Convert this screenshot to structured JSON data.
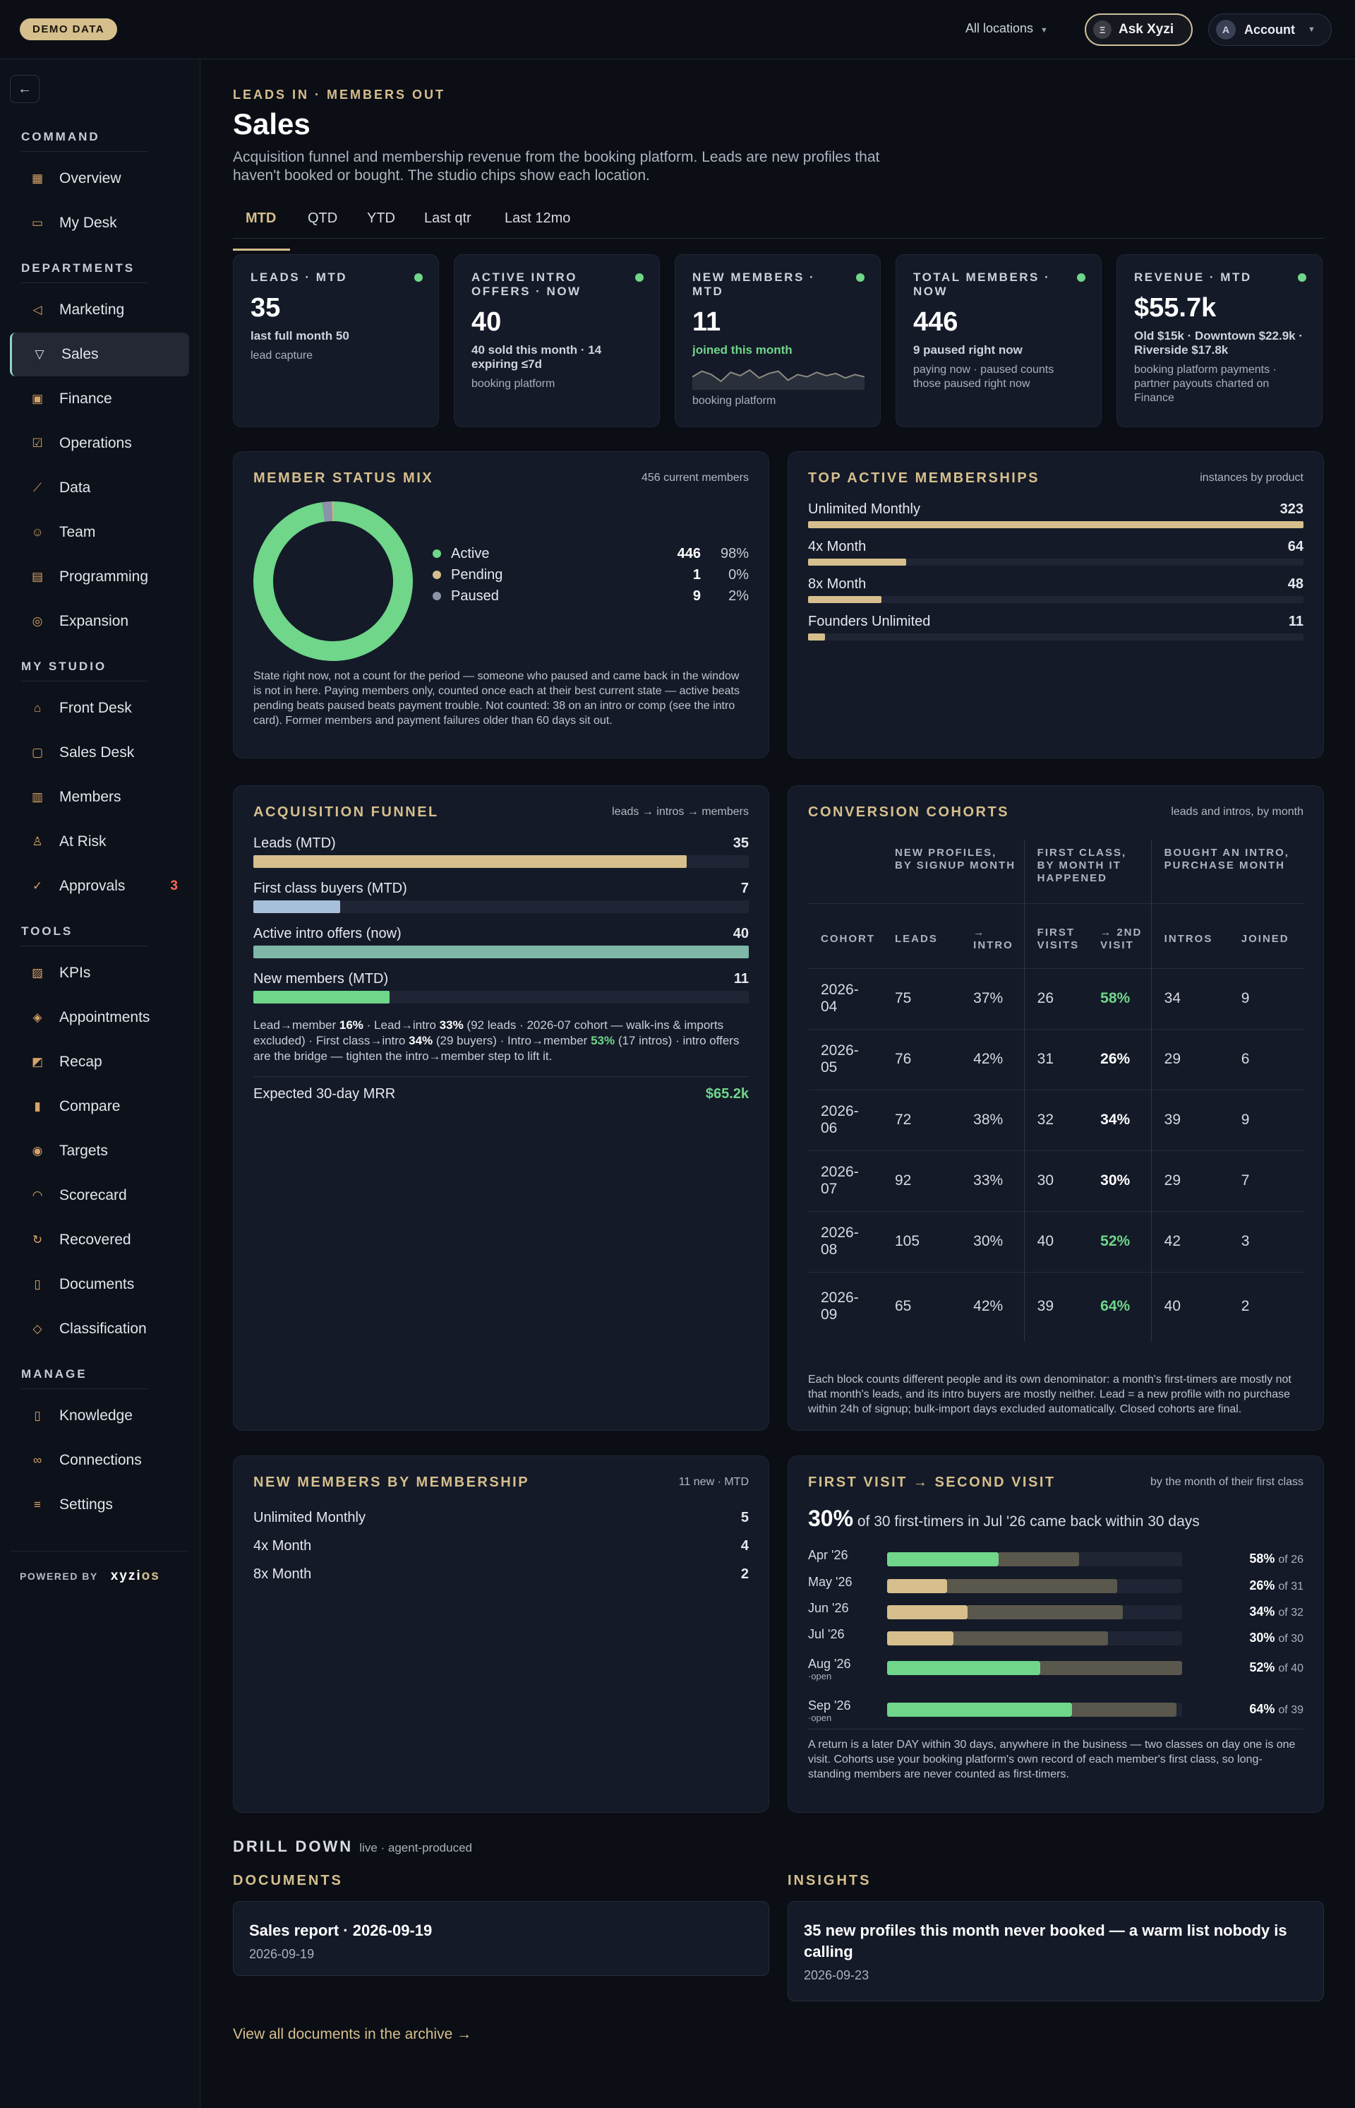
{
  "topbar": {
    "demo": "DEMO DATA",
    "locations": "All locations",
    "ask": "Ask Xyzi",
    "ask_avatar": "Ξ",
    "account": "Account",
    "account_avatar": "A"
  },
  "sidebar": {
    "sections": [
      {
        "label": "COMMAND",
        "items": [
          {
            "label": "Overview",
            "icon": "grid-icon"
          },
          {
            "label": "My Desk",
            "icon": "inbox-icon"
          }
        ]
      },
      {
        "label": "DEPARTMENTS",
        "items": [
          {
            "label": "Marketing",
            "icon": "megaphone-icon"
          },
          {
            "label": "Sales",
            "icon": "filter-icon",
            "active": true
          },
          {
            "label": "Finance",
            "icon": "cash-icon"
          },
          {
            "label": "Operations",
            "icon": "clipboard-icon"
          },
          {
            "label": "Data",
            "icon": "chart-line-icon"
          },
          {
            "label": "Team",
            "icon": "users-icon"
          },
          {
            "label": "Programming",
            "icon": "calendar-icon"
          },
          {
            "label": "Expansion",
            "icon": "compass-icon"
          }
        ]
      },
      {
        "label": "MY STUDIO",
        "items": [
          {
            "label": "Front Desk",
            "icon": "bell-icon"
          },
          {
            "label": "Sales Desk",
            "icon": "chat-icon"
          },
          {
            "label": "Members",
            "icon": "id-card-icon"
          },
          {
            "label": "At Risk",
            "icon": "user-alert-icon"
          },
          {
            "label": "Approvals",
            "icon": "check-circle-icon",
            "badge": "3"
          }
        ]
      },
      {
        "label": "TOOLS",
        "items": [
          {
            "label": "KPIs",
            "icon": "kpi-icon"
          },
          {
            "label": "Appointments",
            "icon": "layers-icon"
          },
          {
            "label": "Recap",
            "icon": "recap-icon"
          },
          {
            "label": "Compare",
            "icon": "bar-chart-icon"
          },
          {
            "label": "Targets",
            "icon": "target-icon"
          },
          {
            "label": "Scorecard",
            "icon": "gauge-icon"
          },
          {
            "label": "Recovered",
            "icon": "recovered-icon"
          },
          {
            "label": "Documents",
            "icon": "document-icon"
          },
          {
            "label": "Classification",
            "icon": "tag-icon"
          }
        ]
      },
      {
        "label": "MANAGE",
        "items": [
          {
            "label": "Knowledge",
            "icon": "book-icon"
          },
          {
            "label": "Connections",
            "icon": "link-icon"
          },
          {
            "label": "Settings",
            "icon": "sliders-icon"
          }
        ]
      }
    ],
    "powered_by": "POWERED BY",
    "brand_a": "xyzi",
    "brand_b": "os"
  },
  "header": {
    "eyebrow": "LEADS IN · MEMBERS OUT",
    "title": "Sales",
    "description": "Acquisition funnel and membership revenue from the booking platform. Leads are new profiles that haven't booked or bought. The studio chips show each location."
  },
  "tabs": [
    "MTD",
    "QTD",
    "YTD",
    "Last qtr",
    "Last 12mo"
  ],
  "kpis": [
    {
      "label": "LEADS · MTD",
      "value": "35",
      "sub": "last full month 50",
      "note": "lead capture"
    },
    {
      "label": "ACTIVE INTRO OFFERS · NOW",
      "value": "40",
      "sub": "40 sold this month · 14 expiring ≤7d",
      "note": "booking platform"
    },
    {
      "label": "NEW MEMBERS · MTD",
      "value": "11",
      "sub": "joined this month",
      "note": "booking platform"
    },
    {
      "label": "TOTAL MEMBERS · NOW",
      "value": "446",
      "sub": "9 paused right now",
      "note": "paying now · paused counts those paused right now"
    },
    {
      "label": "REVENUE · MTD",
      "value": "$55.7k",
      "sub": "Old $15k · Downtown $22.9k · Riverside $17.8k",
      "note": "booking platform payments · partner payouts charted on Finance"
    }
  ],
  "sparkline": [
    0.55,
    0.3,
    0.45,
    0.75,
    0.35,
    0.5,
    0.25,
    0.6,
    0.4,
    0.3,
    0.7,
    0.45,
    0.55,
    0.35,
    0.5,
    0.4,
    0.6,
    0.45,
    0.55
  ],
  "status_mix": {
    "title": "MEMBER STATUS MIX",
    "right": "456 current members",
    "items": [
      {
        "label": "Active",
        "count": "446",
        "pct": "98%",
        "value": 446,
        "color": "#6fd68a"
      },
      {
        "label": "Pending",
        "count": "1",
        "pct": "0%",
        "value": 1,
        "color": "#d6bf8d"
      },
      {
        "label": "Paused",
        "count": "9",
        "pct": "2%",
        "value": 9,
        "color": "#8a93a8"
      }
    ],
    "note": "State right now, not a count for the period — someone who paused and came back in the window is not in here. Paying members only, counted once each at their best current state — active beats pending beats paused beats payment trouble. Not counted: 38 on an intro or comp (see the intro card). Former members and payment failures older than 60 days sit out."
  },
  "top_memberships": {
    "title": "TOP ACTIVE MEMBERSHIPS",
    "right": "instances by product",
    "items": [
      {
        "label": "Unlimited Monthly",
        "value": 323
      },
      {
        "label": "4x Month",
        "value": 64
      },
      {
        "label": "8x Month",
        "value": 48
      },
      {
        "label": "Founders Unlimited",
        "value": 11
      }
    ]
  },
  "funnel": {
    "title": "ACQUISITION FUNNEL",
    "right": "leads → intros → members",
    "items": [
      {
        "label": "Leads (MTD)",
        "value": 35,
        "color": "#d6bf8d"
      },
      {
        "label": "First class buyers (MTD)",
        "value": 7,
        "color": "#a6c0dc"
      },
      {
        "label": "Active intro offers (now)",
        "value": 40,
        "color": "#7fb6a8"
      },
      {
        "label": "New members (MTD)",
        "value": 11,
        "color": "#6fd68a"
      }
    ],
    "note_a": "Lead→member ",
    "note_b": "16%",
    "note_c": " · Lead→intro ",
    "note_d": "33%",
    "note_e": " (92 leads · 2026-07 cohort — walk-ins & imports excluded) · First class→intro ",
    "note_f": "34%",
    "note_g": " (29 buyers) · Intro→member ",
    "note_h": "53%",
    "note_i": " (17 intros) · intro offers are the bridge — tighten the intro→member step to lift it.",
    "mrr_label": "Expected 30-day MRR",
    "mrr_value": "$65.2k"
  },
  "cohorts": {
    "title": "CONVERSION COHORTS",
    "right": "leads and intros, by month",
    "group1": "NEW PROFILES, BY SIGNUP MONTH",
    "group2": "FIRST CLASS, BY MONTH IT HAPPENED",
    "group3": "BOUGHT AN INTRO, PURCHASE MONTH",
    "cols": [
      "COHORT",
      "LEADS",
      "→ INTRO",
      "FIRST VISITS",
      "→ 2ND VISIT",
      "INTROS",
      "JOINED"
    ],
    "rows": [
      {
        "cohort": "2026-04",
        "leads": "75",
        "intro": "37%",
        "fv": "26",
        "sv": "58%",
        "sv_green": true,
        "intros": "34",
        "joined": "9"
      },
      {
        "cohort": "2026-05",
        "leads": "76",
        "intro": "42%",
        "fv": "31",
        "sv": "26%",
        "sv_green": false,
        "intros": "29",
        "joined": "6"
      },
      {
        "cohort": "2026-06",
        "leads": "72",
        "intro": "38%",
        "fv": "32",
        "sv": "34%",
        "sv_green": false,
        "intros": "39",
        "joined": "9"
      },
      {
        "cohort": "2026-07",
        "leads": "92",
        "intro": "33%",
        "fv": "30",
        "sv": "30%",
        "sv_green": false,
        "intros": "29",
        "joined": "7"
      },
      {
        "cohort": "2026-08",
        "leads": "105",
        "intro": "30%",
        "fv": "40",
        "sv": "52%",
        "sv_green": true,
        "intros": "42",
        "joined": "3"
      },
      {
        "cohort": "2026-09",
        "leads": "65",
        "intro": "42%",
        "fv": "39",
        "sv": "64%",
        "sv_green": true,
        "intros": "40",
        "joined": "2"
      }
    ],
    "note": "Each block counts different people and its own denominator: a month's first-timers are mostly not that month's leads, and its intro buyers are mostly neither. Lead = a new profile with no purchase within 24h of signup; bulk-import days excluded automatically. Closed cohorts are final."
  },
  "new_by_membership": {
    "title": "NEW MEMBERS BY MEMBERSHIP",
    "right": "11 new · MTD",
    "items": [
      {
        "label": "Unlimited Monthly",
        "value": "5"
      },
      {
        "label": "4x Month",
        "value": "4"
      },
      {
        "label": "8x Month",
        "value": "2"
      }
    ]
  },
  "first_second": {
    "title": "FIRST VISIT → SECOND VISIT",
    "right": "by the month of their first class",
    "headline": "30%",
    "headline_rest": " of 30 first-timers in Jul '26 came back within 30 days",
    "rows": [
      {
        "label": "Apr '26",
        "sub": "",
        "pct": 58,
        "of": 26,
        "pct_text": "58%",
        "of_text": "of 26",
        "color": "#6fd68a",
        "total": 0.65
      },
      {
        "label": "May '26",
        "sub": "",
        "pct": 26,
        "of": 31,
        "pct_text": "26%",
        "of_text": "of 31",
        "color": "#d6bf8d",
        "total": 0.78
      },
      {
        "label": "Jun '26",
        "sub": "",
        "pct": 34,
        "of": 32,
        "pct_text": "34%",
        "of_text": "of 32",
        "color": "#d6bf8d",
        "total": 0.8
      },
      {
        "label": "Jul '26",
        "sub": "",
        "pct": 30,
        "of": 30,
        "pct_text": "30%",
        "of_text": "of 30",
        "color": "#d6bf8d",
        "total": 0.75
      },
      {
        "label": "Aug '26",
        "sub": "·open",
        "pct": 52,
        "of": 40,
        "pct_text": "52%",
        "of_text": "of 40",
        "color": "#6fd68a",
        "total": 1.0
      },
      {
        "label": "Sep '26",
        "sub": "·open",
        "pct": 64,
        "of": 39,
        "pct_text": "64%",
        "of_text": "of 39",
        "color": "#6fd68a",
        "total": 0.98
      }
    ],
    "note": "A return is a later DAY within 30 days, anywhere in the business — two classes on day one is one visit. Cohorts use your booking platform's own record of each member's first class, so long-standing members are never counted as first-timers."
  },
  "drill": {
    "title": "DRILL DOWN",
    "sub": "live · agent-produced",
    "documents_label": "DOCUMENTS",
    "insights_label": "INSIGHTS",
    "doc_title": "Sales report · 2026-09-19",
    "doc_date": "2026-09-19",
    "insight_title": "35 new profiles this month never booked — a warm list nobody is calling",
    "insight_date": "2026-09-23",
    "archive_link": "View all documents in the archive →"
  }
}
